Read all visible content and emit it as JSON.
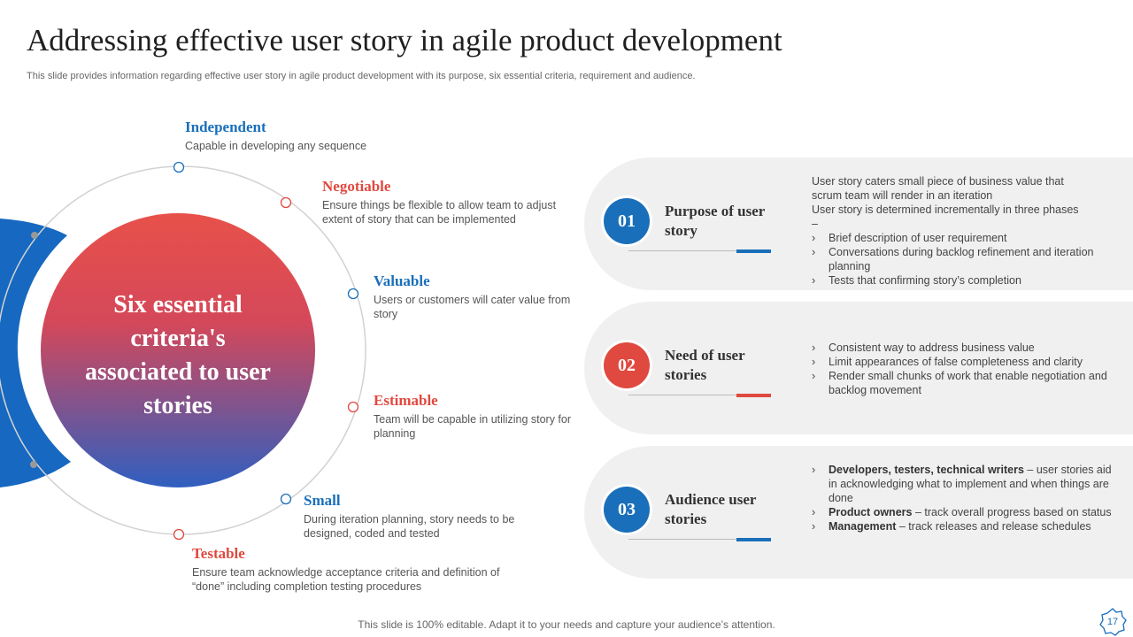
{
  "header": {
    "title": "Addressing effective user story in agile product development",
    "subtitle": "This slide provides information regarding effective user story in agile product development with its purpose, six essential criteria, requirement and audience."
  },
  "center_label": "Six essential criteria's associated to user stories",
  "criteria": [
    {
      "name": "Independent",
      "description": "Capable in developing  any sequence"
    },
    {
      "name": "Negotiable",
      "description": "Ensure things be flexible to allow team to adjust extent of story that can be implemented"
    },
    {
      "name": "Valuable",
      "description": "Users or customers will cater value from story"
    },
    {
      "name": "Estimable",
      "description": "Team will be capable in utilizing story for planning"
    },
    {
      "name": "Small",
      "description": "During iteration planning, story needs to be designed, coded and tested"
    },
    {
      "name": "Testable",
      "description": "Ensure team acknowledge acceptance criteria and definition of “done” including completion testing procedures"
    }
  ],
  "panels": [
    {
      "number": "01",
      "title": "Purpose of user story",
      "intro": [
        "User story caters small piece of business value that scrum team will render in an iteration",
        "User story is determined incrementally in three phases –"
      ],
      "bullets": [
        {
          "text": "Brief description of user requirement"
        },
        {
          "text": "Conversations  during  backlog refinement and iteration planning"
        },
        {
          "text": "Tests that confirming story’s completion"
        }
      ]
    },
    {
      "number": "02",
      "title": "Need of user stories",
      "bullets": [
        {
          "text": "Consistent way to address business value"
        },
        {
          "text": "Limit appearances of false completeness and clarity"
        },
        {
          "text": "Render small chunks of work that enable negotiation and backlog movement"
        }
      ]
    },
    {
      "number": "03",
      "title": "Audience user stories",
      "bullets": [
        {
          "bold": "Developers, testers,  technical writers",
          "text": " – user stories aid in acknowledging what to implement and when things are done"
        },
        {
          "bold": "Product owners",
          "text": " – track overall  progress  based on status"
        },
        {
          "bold": "Management",
          "text": " – track releases  and release schedules"
        }
      ]
    }
  ],
  "footer": "This slide is 100% editable. Adapt it to your needs and capture your audience’s attention.",
  "page_number": "17"
}
